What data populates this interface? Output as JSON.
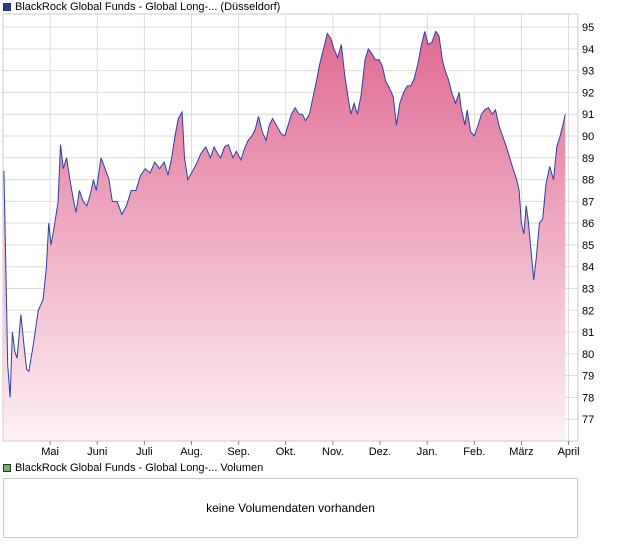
{
  "legend_price": "BlackRock Global Funds - Global Long-... (Düsseldorf)",
  "legend_volume": "BlackRock Global Funds - Global Long-... Volumen",
  "no_volume_text": "keine Volumendaten vorhanden",
  "colors": {
    "line": "#2b3fa8",
    "fill_top": "#e06a93",
    "fill_bottom": "#fdf0f5",
    "grid": "#dcdcdc",
    "frame": "#c8c8c8",
    "volume_swatch": "#66bb66"
  },
  "chart_data": {
    "type": "area",
    "title": "",
    "xlabel": "",
    "ylabel": "",
    "ylim": [
      76,
      95.6
    ],
    "yticks": [
      77,
      78,
      79,
      80,
      81,
      82,
      83,
      84,
      85,
      86,
      87,
      88,
      89,
      90,
      91,
      92,
      93,
      94,
      95
    ],
    "x_range": [
      0,
      12.2
    ],
    "xticks": [
      {
        "label": "Mai",
        "x": 1
      },
      {
        "label": "Juni",
        "x": 2
      },
      {
        "label": "Juli",
        "x": 3
      },
      {
        "label": "Aug.",
        "x": 4
      },
      {
        "label": "Sep.",
        "x": 5
      },
      {
        "label": "Okt.",
        "x": 6
      },
      {
        "label": "Nov.",
        "x": 7
      },
      {
        "label": "Dez.",
        "x": 8
      },
      {
        "label": "Jan.",
        "x": 9
      },
      {
        "label": "Feb.",
        "x": 10
      },
      {
        "label": "März",
        "x": 11
      },
      {
        "label": "April",
        "x": 12
      }
    ],
    "grid": true,
    "series": [
      {
        "values": [
          [
            0.02,
            88.4
          ],
          [
            0.05,
            85.0
          ],
          [
            0.1,
            79.5
          ],
          [
            0.15,
            78.0
          ],
          [
            0.2,
            81.0
          ],
          [
            0.25,
            80.1
          ],
          [
            0.3,
            79.8
          ],
          [
            0.38,
            81.8
          ],
          [
            0.45,
            80.3
          ],
          [
            0.5,
            79.3
          ],
          [
            0.55,
            79.2
          ],
          [
            0.65,
            80.5
          ],
          [
            0.75,
            82.0
          ],
          [
            0.85,
            82.5
          ],
          [
            0.92,
            84.0
          ],
          [
            0.97,
            86.0
          ],
          [
            1.02,
            85.0
          ],
          [
            1.1,
            86.0
          ],
          [
            1.17,
            87.0
          ],
          [
            1.22,
            89.6
          ],
          [
            1.28,
            88.5
          ],
          [
            1.35,
            89.0
          ],
          [
            1.42,
            88.0
          ],
          [
            1.5,
            87.0
          ],
          [
            1.55,
            86.5
          ],
          [
            1.62,
            87.5
          ],
          [
            1.7,
            87.0
          ],
          [
            1.78,
            86.8
          ],
          [
            1.85,
            87.3
          ],
          [
            1.92,
            88.0
          ],
          [
            1.98,
            87.5
          ],
          [
            2.08,
            89.0
          ],
          [
            2.15,
            88.6
          ],
          [
            2.25,
            88.0
          ],
          [
            2.32,
            87.0
          ],
          [
            2.42,
            87.0
          ],
          [
            2.52,
            86.4
          ],
          [
            2.62,
            86.8
          ],
          [
            2.72,
            87.5
          ],
          [
            2.82,
            87.5
          ],
          [
            2.92,
            88.2
          ],
          [
            3.02,
            88.5
          ],
          [
            3.12,
            88.3
          ],
          [
            3.22,
            88.8
          ],
          [
            3.32,
            88.5
          ],
          [
            3.42,
            88.8
          ],
          [
            3.5,
            88.2
          ],
          [
            3.58,
            89.0
          ],
          [
            3.65,
            90.0
          ],
          [
            3.72,
            90.8
          ],
          [
            3.8,
            91.1
          ],
          [
            3.85,
            89.0
          ],
          [
            3.92,
            88.0
          ],
          [
            4.0,
            88.3
          ],
          [
            4.1,
            88.7
          ],
          [
            4.2,
            89.2
          ],
          [
            4.3,
            89.5
          ],
          [
            4.4,
            89.0
          ],
          [
            4.48,
            89.5
          ],
          [
            4.55,
            89.2
          ],
          [
            4.62,
            89.0
          ],
          [
            4.7,
            89.5
          ],
          [
            4.78,
            89.6
          ],
          [
            4.88,
            89.0
          ],
          [
            4.95,
            89.3
          ],
          [
            5.05,
            88.9
          ],
          [
            5.12,
            89.4
          ],
          [
            5.2,
            89.8
          ],
          [
            5.28,
            90.0
          ],
          [
            5.35,
            90.3
          ],
          [
            5.42,
            90.9
          ],
          [
            5.5,
            90.2
          ],
          [
            5.58,
            89.8
          ],
          [
            5.65,
            90.5
          ],
          [
            5.72,
            90.8
          ],
          [
            5.8,
            90.5
          ],
          [
            5.9,
            90.1
          ],
          [
            5.98,
            90.0
          ],
          [
            6.05,
            90.5
          ],
          [
            6.12,
            91.0
          ],
          [
            6.2,
            91.3
          ],
          [
            6.28,
            91.0
          ],
          [
            6.35,
            91.0
          ],
          [
            6.42,
            90.7
          ],
          [
            6.5,
            91.0
          ],
          [
            6.58,
            91.8
          ],
          [
            6.65,
            92.5
          ],
          [
            6.72,
            93.3
          ],
          [
            6.8,
            94.0
          ],
          [
            6.88,
            94.7
          ],
          [
            6.95,
            94.5
          ],
          [
            7.02,
            94.0
          ],
          [
            7.1,
            93.6
          ],
          [
            7.18,
            94.2
          ],
          [
            7.25,
            92.8
          ],
          [
            7.32,
            91.8
          ],
          [
            7.38,
            91.0
          ],
          [
            7.45,
            91.5
          ],
          [
            7.52,
            91.0
          ],
          [
            7.6,
            91.9
          ],
          [
            7.68,
            93.5
          ],
          [
            7.75,
            94.0
          ],
          [
            7.82,
            93.8
          ],
          [
            7.9,
            93.5
          ],
          [
            7.98,
            93.5
          ],
          [
            8.05,
            93.2
          ],
          [
            8.12,
            92.5
          ],
          [
            8.2,
            92.2
          ],
          [
            8.28,
            91.8
          ],
          [
            8.35,
            90.5
          ],
          [
            8.42,
            91.5
          ],
          [
            8.5,
            92.0
          ],
          [
            8.58,
            92.3
          ],
          [
            8.65,
            92.3
          ],
          [
            8.72,
            92.6
          ],
          [
            8.8,
            93.3
          ],
          [
            8.88,
            94.2
          ],
          [
            8.95,
            94.8
          ],
          [
            9.02,
            94.2
          ],
          [
            9.1,
            94.3
          ],
          [
            9.18,
            94.8
          ],
          [
            9.25,
            94.6
          ],
          [
            9.32,
            93.5
          ],
          [
            9.38,
            93.0
          ],
          [
            9.45,
            92.6
          ],
          [
            9.52,
            92.0
          ],
          [
            9.6,
            91.5
          ],
          [
            9.68,
            92.0
          ],
          [
            9.72,
            91.3
          ],
          [
            9.8,
            90.5
          ],
          [
            9.85,
            91.2
          ],
          [
            9.92,
            90.2
          ],
          [
            10.0,
            90.0
          ],
          [
            10.08,
            90.5
          ],
          [
            10.15,
            91.0
          ],
          [
            10.22,
            91.2
          ],
          [
            10.3,
            91.3
          ],
          [
            10.38,
            91.0
          ],
          [
            10.45,
            91.2
          ],
          [
            10.52,
            90.5
          ],
          [
            10.6,
            90.0
          ],
          [
            10.68,
            89.5
          ],
          [
            10.75,
            89.0
          ],
          [
            10.82,
            88.5
          ],
          [
            10.9,
            88.0
          ],
          [
            10.95,
            87.5
          ],
          [
            11.0,
            86.0
          ],
          [
            11.05,
            85.5
          ],
          [
            11.1,
            86.8
          ],
          [
            11.15,
            86.0
          ],
          [
            11.2,
            84.8
          ],
          [
            11.26,
            83.4
          ],
          [
            11.32,
            84.5
          ],
          [
            11.38,
            86.0
          ],
          [
            11.45,
            86.2
          ],
          [
            11.52,
            87.8
          ],
          [
            11.6,
            88.6
          ],
          [
            11.68,
            88.0
          ],
          [
            11.75,
            89.5
          ],
          [
            11.82,
            90.0
          ],
          [
            11.88,
            90.5
          ],
          [
            11.93,
            91.0
          ]
        ]
      }
    ]
  }
}
